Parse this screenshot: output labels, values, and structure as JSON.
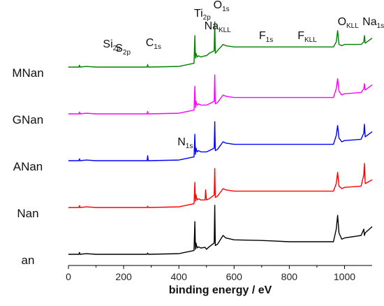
{
  "chart_data": {
    "type": "line",
    "xlabel": "binding energy / eV",
    "ylabel": "",
    "xlim": [
      0,
      1100
    ],
    "xticks": [
      "0",
      "200",
      "400",
      "600",
      "800",
      "1000"
    ],
    "grid": false,
    "series": [
      {
        "name": "an",
        "color": "#000000",
        "offset": 0,
        "x": [
          0,
          38,
          40,
          42,
          65,
          100,
          285,
          287,
          289,
          400,
          455,
          458,
          460,
          462,
          466,
          470,
          480,
          495,
          500,
          510,
          528,
          530,
          532,
          540,
          560,
          570,
          600,
          700,
          800,
          960,
          970,
          975,
          980,
          990,
          1000,
          1060,
          1070,
          1072,
          1075,
          1100
        ],
        "y": [
          0,
          0,
          3,
          0,
          1,
          0,
          0,
          2,
          0,
          1,
          6,
          52,
          8,
          18,
          10,
          12,
          10,
          11,
          8,
          12,
          18,
          78,
          14,
          16,
          30,
          26,
          23,
          22,
          20,
          20,
          40,
          62,
          34,
          24,
          26,
          30,
          40,
          30,
          34,
          44
        ]
      },
      {
        "name": "Nan",
        "color": "#ff0000",
        "offset": 1,
        "x": [
          0,
          38,
          40,
          42,
          65,
          100,
          285,
          287,
          289,
          400,
          455,
          458,
          460,
          462,
          466,
          470,
          480,
          495,
          497,
          500,
          510,
          528,
          530,
          532,
          540,
          560,
          570,
          600,
          700,
          800,
          960,
          970,
          975,
          980,
          990,
          1000,
          1060,
          1070,
          1072,
          1075,
          1100
        ],
        "y": [
          0,
          0,
          3,
          0,
          1,
          0,
          0,
          2,
          0,
          1,
          6,
          40,
          10,
          20,
          12,
          14,
          12,
          12,
          28,
          12,
          14,
          20,
          62,
          16,
          18,
          30,
          28,
          26,
          26,
          26,
          26,
          38,
          56,
          34,
          30,
          32,
          34,
          52,
          70,
          38,
          44
        ]
      },
      {
        "name": "ANan",
        "color": "#0000ff",
        "offset": 2,
        "x": [
          0,
          38,
          40,
          42,
          65,
          100,
          285,
          287,
          289,
          400,
          455,
          458,
          460,
          462,
          466,
          470,
          480,
          495,
          500,
          510,
          528,
          530,
          532,
          540,
          560,
          570,
          600,
          700,
          800,
          960,
          970,
          975,
          980,
          990,
          1000,
          1060,
          1070,
          1072,
          1075,
          1100
        ],
        "y": [
          0,
          0,
          3,
          0,
          1,
          0,
          0,
          8,
          0,
          1,
          6,
          42,
          10,
          20,
          14,
          16,
          14,
          14,
          14,
          16,
          20,
          62,
          16,
          18,
          30,
          28,
          26,
          26,
          26,
          26,
          40,
          56,
          36,
          30,
          32,
          34,
          44,
          58,
          38,
          46
        ]
      },
      {
        "name": "GNan",
        "color": "#ff00ff",
        "offset": 3,
        "x": [
          0,
          38,
          40,
          42,
          65,
          100,
          285,
          287,
          289,
          400,
          455,
          458,
          460,
          462,
          466,
          470,
          480,
          495,
          500,
          510,
          528,
          530,
          532,
          540,
          560,
          570,
          600,
          700,
          800,
          960,
          970,
          975,
          980,
          990,
          1000,
          1060,
          1070,
          1072,
          1075,
          1100
        ],
        "y": [
          0,
          0,
          3,
          0,
          1,
          0,
          0,
          4,
          0,
          1,
          6,
          44,
          10,
          20,
          14,
          16,
          14,
          14,
          14,
          16,
          20,
          62,
          16,
          18,
          30,
          28,
          26,
          26,
          26,
          26,
          40,
          56,
          36,
          30,
          32,
          34,
          40,
          48,
          38,
          46
        ]
      },
      {
        "name": "MNan",
        "color": "#008000",
        "offset": 4,
        "x": [
          0,
          38,
          40,
          42,
          65,
          100,
          285,
          287,
          289,
          400,
          455,
          458,
          460,
          462,
          466,
          470,
          480,
          495,
          500,
          510,
          528,
          530,
          532,
          540,
          560,
          570,
          600,
          700,
          800,
          960,
          970,
          975,
          980,
          990,
          1000,
          1060,
          1070,
          1072,
          1075,
          1100
        ],
        "y": [
          0,
          0,
          3,
          0,
          1,
          0,
          0,
          4,
          0,
          1,
          6,
          50,
          14,
          22,
          16,
          18,
          16,
          18,
          18,
          22,
          26,
          72,
          22,
          26,
          36,
          34,
          32,
          32,
          32,
          32,
          40,
          58,
          36,
          34,
          36,
          36,
          40,
          50,
          38,
          46
        ]
      }
    ],
    "annotations": [
      {
        "text": "Si",
        "sub": "2p",
        "x": 125,
        "series": "MNan",
        "lift": 28
      },
      {
        "text": "S",
        "sub": "2p",
        "x": 170,
        "series": "MNan",
        "lift": 22
      },
      {
        "text": "C",
        "sub": "1s",
        "x": 280,
        "series": "MNan",
        "lift": 30
      },
      {
        "text": "Ti",
        "sub": "2p",
        "x": 455,
        "series": "MNan",
        "lift": 72
      },
      {
        "text": "Na",
        "sub": "KLL",
        "x": 492,
        "series": "MNan",
        "lift": 54
      },
      {
        "text": "O",
        "sub": "1s",
        "x": 525,
        "series": "MNan",
        "lift": 84
      },
      {
        "text": "F",
        "sub": "1s",
        "x": 690,
        "series": "MNan",
        "lift": 40
      },
      {
        "text": "F",
        "sub": "KLL",
        "x": 830,
        "series": "MNan",
        "lift": 40
      },
      {
        "text": "O",
        "sub": "KLL",
        "x": 975,
        "series": "MNan",
        "lift": 60
      },
      {
        "text": "Na",
        "sub": "1s",
        "x": 1065,
        "series": "MNan",
        "lift": 60
      },
      {
        "text": "N",
        "sub": "1s",
        "x": 395,
        "series": "ANan",
        "lift": 22
      }
    ]
  }
}
